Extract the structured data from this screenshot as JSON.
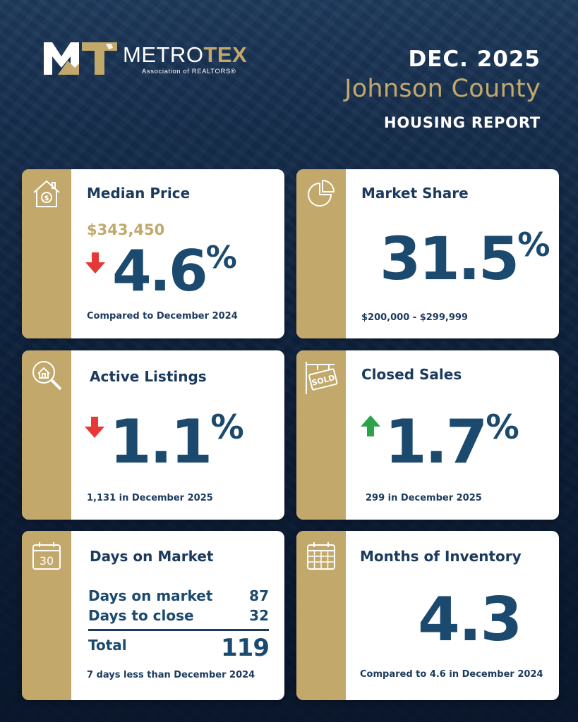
{
  "header": {
    "logo_metro": "METRO",
    "logo_tex": "TEX",
    "logo_sub": "Association of REALTORS®",
    "date": "DEC. 2025",
    "county": "Johnson County",
    "report_title": "HOUSING REPORT"
  },
  "colors": {
    "gold": "#c2a86b",
    "navy": "#1b3a5e",
    "down_arrow": "#e53935",
    "up_arrow": "#2ca24a"
  },
  "cards": {
    "median_price": {
      "icon": "house-dollar-icon",
      "title": "Median Price",
      "price": "$343,450",
      "trend": "down",
      "value": "4.6",
      "unit": "%",
      "footer": "Compared to December 2024"
    },
    "market_share": {
      "icon": "pie-chart-icon",
      "title": "Market Share",
      "value": "31.5",
      "unit": "%",
      "footer": "$200,000 - $299,999"
    },
    "active_listings": {
      "icon": "house-search-icon",
      "title": "Active Listings",
      "trend": "down",
      "value": "1.1",
      "unit": "%",
      "footer": "1,131 in December 2025"
    },
    "closed_sales": {
      "icon": "sold-sign-icon",
      "icon_text": "SOLD",
      "title": "Closed Sales",
      "trend": "up",
      "value": "1.7",
      "unit": "%",
      "footer": "299 in December 2025"
    },
    "days_on_market": {
      "icon": "calendar-30-icon",
      "icon_text": "30",
      "title": "Days on Market",
      "rows": [
        {
          "label": "Days on market",
          "value": "87"
        },
        {
          "label": "Days to close",
          "value": "32"
        }
      ],
      "total_label": "Total",
      "total_value": "119",
      "footer": "7 days less than December 2024"
    },
    "months_inventory": {
      "icon": "calendar-grid-icon",
      "title": "Months of Inventory",
      "value": "4.3",
      "footer": "Compared to 4.6 in December 2024"
    }
  }
}
